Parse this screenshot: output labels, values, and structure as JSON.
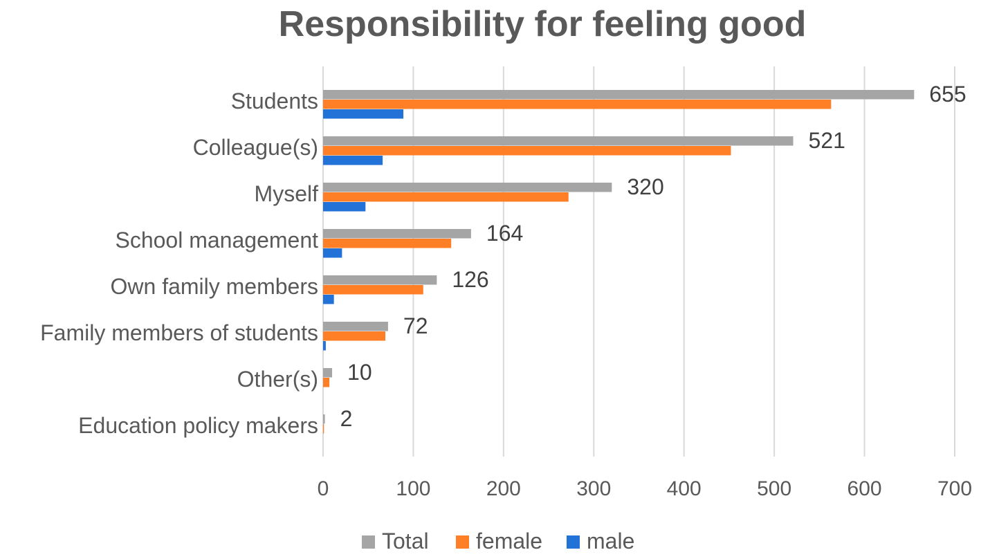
{
  "chart_data": {
    "type": "bar",
    "orientation": "horizontal",
    "title": "Responsibility for feeling good",
    "xlabel": "",
    "ylabel": "",
    "categories": [
      "Students",
      "Colleague(s)",
      "Myself",
      "School management",
      "Own family members",
      "Family members of students",
      "Other(s)",
      "Education policy makers"
    ],
    "series": [
      {
        "name": "Total",
        "color": "#a5a5a5",
        "values": [
          655,
          521,
          320,
          164,
          126,
          72,
          10,
          2
        ],
        "labels": [
          "655",
          "521",
          "320",
          "164",
          "126",
          "72",
          "10",
          "2"
        ]
      },
      {
        "name": "female",
        "color": "#ff7f27",
        "values": [
          563,
          452,
          272,
          142,
          111,
          69,
          7,
          1
        ]
      },
      {
        "name": "male",
        "color": "#2272d8",
        "values": [
          89,
          66,
          47,
          21,
          12,
          3,
          0,
          0
        ]
      }
    ],
    "xlim": [
      0,
      700
    ],
    "xticks": [
      "0",
      "100",
      "200",
      "300",
      "400",
      "500",
      "600",
      "700"
    ],
    "grid": "vertical",
    "legend": "bottom"
  }
}
